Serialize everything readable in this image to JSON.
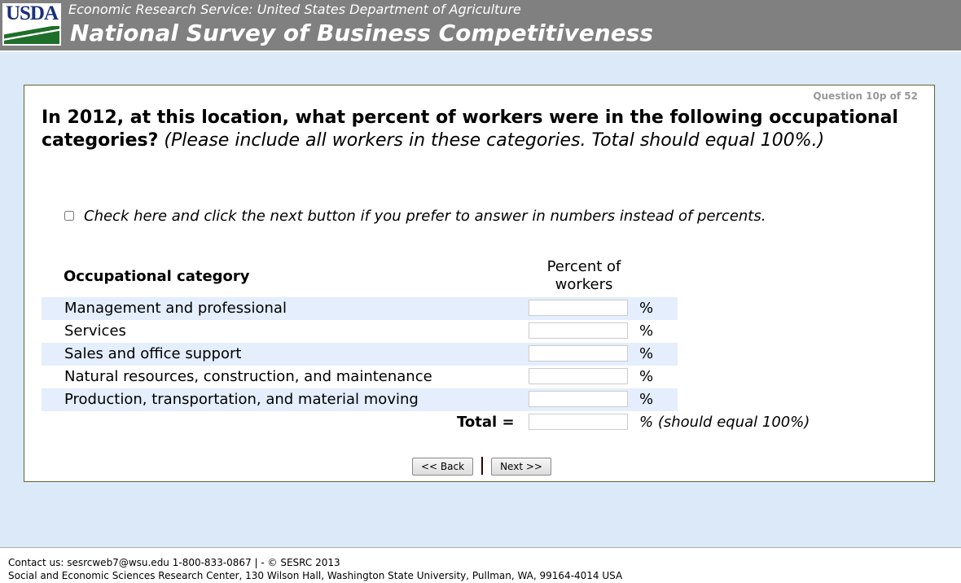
{
  "header": {
    "logo": "USDA",
    "subtitle": "Economic Research Service: United States Department of Agriculture",
    "title": "National Survey of Business Competitiveness"
  },
  "question": {
    "number": "Question 10p of 52",
    "text_bold": "In 2012, at this location, what percent of workers were in the following occupational categories?",
    "text_italic": "(Please include all workers in these categories. Total should equal 100%.)",
    "checkbox_label": "Check here and click the next button if you prefer to answer in numbers instead of percents.",
    "col_category": "Occupational category",
    "col_percent": "Percent of workers",
    "rows": [
      {
        "label": "Management and professional",
        "value": ""
      },
      {
        "label": "Services",
        "value": ""
      },
      {
        "label": "Sales and office support",
        "value": ""
      },
      {
        "label": "Natural resources, construction, and maintenance",
        "value": ""
      },
      {
        "label": "Production, transportation, and material moving",
        "value": ""
      }
    ],
    "unit": "%",
    "total_label": "Total =",
    "total_note": "% (should equal 100%)",
    "total_value": ""
  },
  "nav": {
    "back": "<< Back",
    "next": "Next >>"
  },
  "footer": {
    "line1": "Contact us: sesrcweb7@wsu.edu 1-800-833-0867 | - © SESRC 2013",
    "line2": "Social and Economic Sciences Research Center, 130 Wilson Hall, Washington State University, Pullman, WA, 99164-4014 USA"
  }
}
